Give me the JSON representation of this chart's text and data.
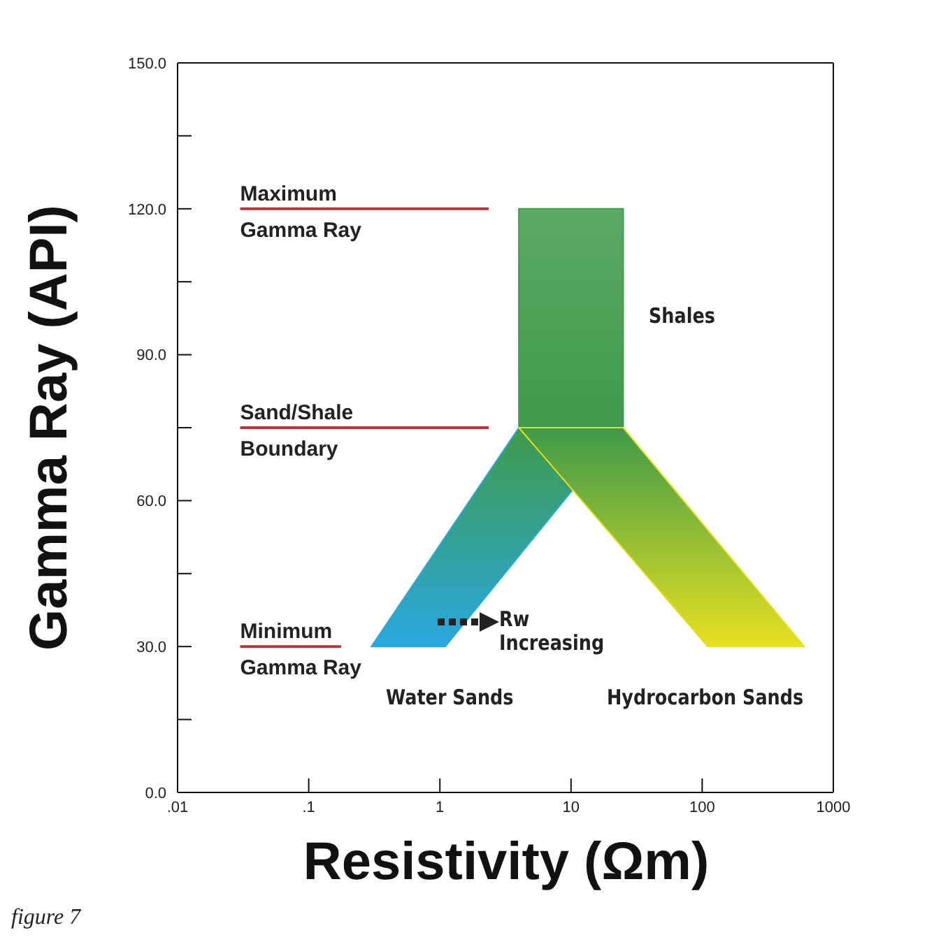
{
  "chart_data": {
    "type": "area",
    "xlabel": "Resistivity (Ωm)",
    "ylabel": "Gamma Ray (API)",
    "log": "x",
    "xlim": [
      0.01,
      1000
    ],
    "xticks": [
      {
        "value": 0.01,
        "label": ".01"
      },
      {
        "value": 0.1,
        "label": ".1"
      },
      1,
      10,
      100,
      1000
    ],
    "ylim": [
      0,
      150
    ],
    "yticks": [
      {
        "value": 0,
        "label": "0.0"
      },
      {
        "value": 15,
        "label": null
      },
      {
        "value": 30,
        "label": "30.0"
      },
      {
        "value": 45,
        "label": null
      },
      {
        "value": 60,
        "label": "60.0"
      },
      {
        "value": 75,
        "label": null
      },
      {
        "value": 90,
        "label": "90.0"
      },
      {
        "value": 105,
        "label": null
      },
      {
        "value": 120,
        "label": "120.0"
      },
      {
        "value": 135,
        "label": null
      },
      {
        "value": 150,
        "label": "150.0"
      }
    ],
    "grid": false,
    "legend": false,
    "series": [
      {
        "name": "Shales",
        "color": "#3f9a4a",
        "x": [
          4,
          25,
          25,
          4
        ],
        "values": [
          120,
          120,
          75,
          75
        ]
      },
      {
        "name": "Water Sands",
        "color": "#2aa8e0",
        "x": [
          4,
          25,
          1.1,
          0.3
        ],
        "values": [
          75,
          75,
          30,
          30
        ]
      },
      {
        "name": "Hydrocarbon Sands",
        "color": "#e6e020",
        "x": [
          4,
          25,
          600,
          110
        ],
        "values": [
          75,
          75,
          30,
          30
        ]
      }
    ],
    "ref_lines": [
      {
        "axis": "y",
        "value": 120,
        "label": "Maximum Gamma Ray",
        "color": "#b03a3a"
      },
      {
        "axis": "y",
        "value": 75,
        "label": "Sand/Shale Boundary",
        "color": "#b03a3a"
      },
      {
        "axis": "y",
        "value": 30,
        "label": "Minimum Gamma Ray",
        "color": "#b03a3a"
      }
    ],
    "annotations": [
      "Rw Increasing",
      "figure 7"
    ]
  }
}
